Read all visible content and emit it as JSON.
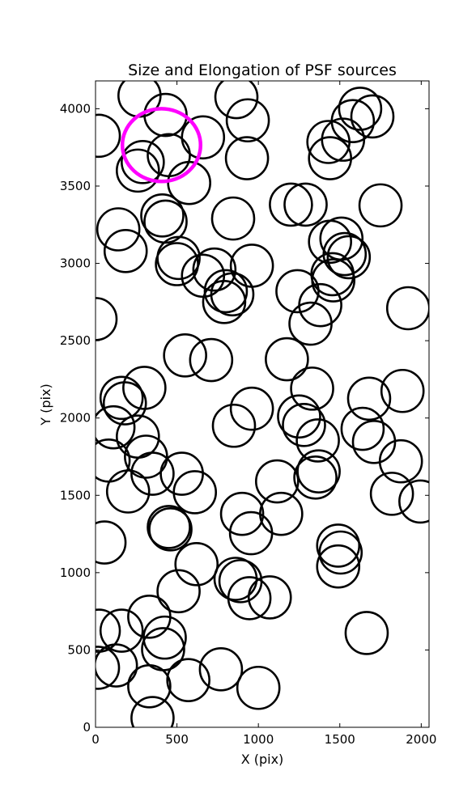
{
  "chart_data": {
    "type": "scatter",
    "title": "Size and Elongation of PSF sources",
    "xlabel": "X (pix)",
    "ylabel": "Y (pix)",
    "xlim": [
      0,
      2048
    ],
    "ylim": [
      0,
      4180
    ],
    "xticks": [
      "0",
      "500",
      "1000",
      "1500",
      "2000"
    ],
    "yticks": [
      "0",
      "500",
      "1000",
      "1500",
      "2000",
      "2500",
      "3000",
      "3500",
      "4000"
    ],
    "grid": false,
    "marker": "ellipse outline",
    "source_color": "#000000",
    "highlight_color": "#ff00ff",
    "highlight": {
      "x": 405,
      "y": 3765,
      "rx": 240,
      "ry": 235
    },
    "sources": [
      [
        270,
        4085
      ],
      [
        20,
        3825
      ],
      [
        430,
        3960
      ],
      [
        865,
        4075
      ],
      [
        935,
        3925
      ],
      [
        1625,
        4000
      ],
      [
        1700,
        3950
      ],
      [
        1580,
        3920
      ],
      [
        1430,
        3785
      ],
      [
        1520,
        3800
      ],
      [
        660,
        3815
      ],
      [
        450,
        3700
      ],
      [
        290,
        3655
      ],
      [
        260,
        3600
      ],
      [
        575,
        3520
      ],
      [
        930,
        3680
      ],
      [
        1440,
        3680
      ],
      [
        410,
        3310
      ],
      [
        430,
        3270
      ],
      [
        1200,
        3380
      ],
      [
        1290,
        3380
      ],
      [
        1750,
        3375
      ],
      [
        140,
        3220
      ],
      [
        185,
        3080
      ],
      [
        845,
        3290
      ],
      [
        1440,
        3140
      ],
      [
        1510,
        3160
      ],
      [
        1530,
        3060
      ],
      [
        1555,
        3040
      ],
      [
        510,
        3035
      ],
      [
        500,
        2995
      ],
      [
        730,
        2960
      ],
      [
        960,
        2985
      ],
      [
        660,
        2920
      ],
      [
        800,
        2820
      ],
      [
        840,
        2800
      ],
      [
        790,
        2750
      ],
      [
        1455,
        2930
      ],
      [
        1460,
        2890
      ],
      [
        1240,
        2820
      ],
      [
        1380,
        2730
      ],
      [
        1320,
        2610
      ],
      [
        0,
        2640
      ],
      [
        1920,
        2710
      ],
      [
        550,
        2405
      ],
      [
        710,
        2375
      ],
      [
        1175,
        2380
      ],
      [
        300,
        2195
      ],
      [
        160,
        2130
      ],
      [
        180,
        2095
      ],
      [
        1330,
        2190
      ],
      [
        1680,
        2125
      ],
      [
        1885,
        2175
      ],
      [
        960,
        2060
      ],
      [
        850,
        1950
      ],
      [
        1250,
        2010
      ],
      [
        1280,
        1955
      ],
      [
        1365,
        1855
      ],
      [
        1640,
        1930
      ],
      [
        1710,
        1845
      ],
      [
        110,
        1940
      ],
      [
        260,
        1880
      ],
      [
        80,
        1725
      ],
      [
        310,
        1750
      ],
      [
        350,
        1640
      ],
      [
        530,
        1640
      ],
      [
        610,
        1520
      ],
      [
        200,
        1525
      ],
      [
        1115,
        1590
      ],
      [
        1370,
        1655
      ],
      [
        1350,
        1615
      ],
      [
        1875,
        1720
      ],
      [
        1820,
        1510
      ],
      [
        1995,
        1460
      ],
      [
        900,
        1380
      ],
      [
        955,
        1255
      ],
      [
        1140,
        1380
      ],
      [
        450,
        1295
      ],
      [
        460,
        1280
      ],
      [
        55,
        1195
      ],
      [
        620,
        1055
      ],
      [
        1490,
        1175
      ],
      [
        1505,
        1130
      ],
      [
        1490,
        1040
      ],
      [
        510,
        880
      ],
      [
        860,
        960
      ],
      [
        890,
        945
      ],
      [
        945,
        835
      ],
      [
        1070,
        840
      ],
      [
        330,
        715
      ],
      [
        425,
        580
      ],
      [
        20,
        625
      ],
      [
        160,
        625
      ],
      [
        415,
        505
      ],
      [
        570,
        305
      ],
      [
        770,
        375
      ],
      [
        1000,
        255
      ],
      [
        125,
        400
      ],
      [
        15,
        385
      ],
      [
        330,
        265
      ],
      [
        350,
        60
      ],
      [
        1665,
        610
      ]
    ]
  }
}
